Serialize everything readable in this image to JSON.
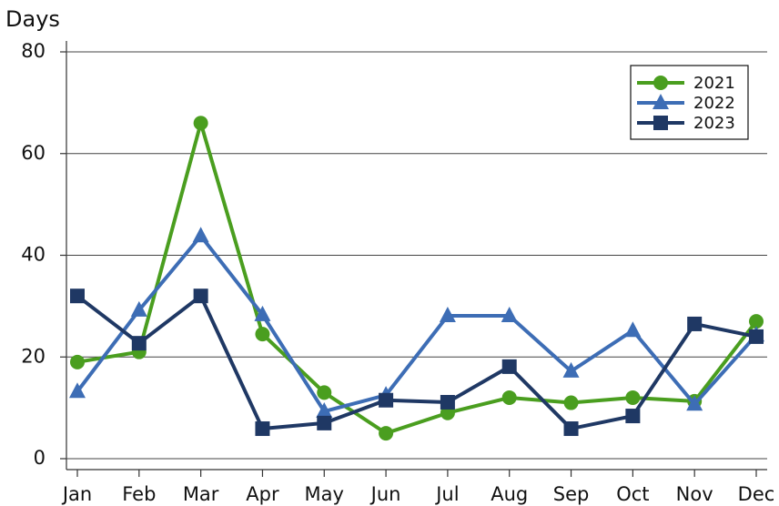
{
  "chart_data": {
    "type": "line",
    "y_label": "Days",
    "categories": [
      "Jan",
      "Feb",
      "Mar",
      "Apr",
      "May",
      "Jun",
      "Jul",
      "Aug",
      "Sep",
      "Oct",
      "Nov",
      "Dec"
    ],
    "series": [
      {
        "name": "2021",
        "color": "#4a9e1f",
        "marker": "circle",
        "values": [
          19,
          21,
          66,
          24.5,
          13,
          5,
          9,
          12,
          11,
          12,
          11.3,
          27
        ]
      },
      {
        "name": "2022",
        "color": "#3d6db5",
        "marker": "triangle",
        "values": [
          13.2,
          29.2,
          43.8,
          28.3,
          9.3,
          12.5,
          28.1,
          28.1,
          17.2,
          25.2,
          10.7,
          24.3
        ]
      },
      {
        "name": "2023",
        "color": "#1f3864",
        "marker": "square",
        "values": [
          32,
          22.7,
          32,
          5.9,
          7,
          11.5,
          11.1,
          18.1,
          5.9,
          8.4,
          26.5,
          24
        ]
      }
    ],
    "ylim": [
      0,
      80
    ],
    "yticks": [
      0,
      20,
      40,
      60,
      80
    ],
    "grid": true,
    "legend": "upper right"
  }
}
